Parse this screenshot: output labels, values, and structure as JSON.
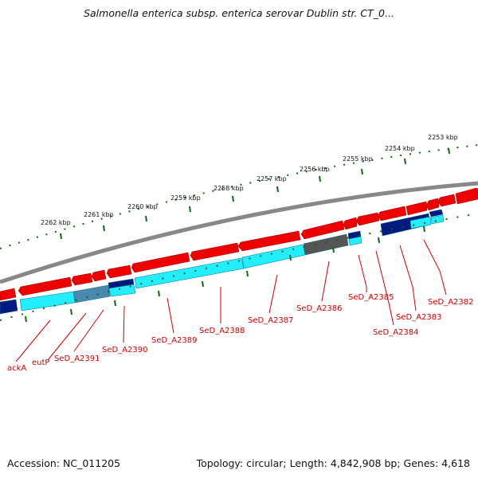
{
  "title": "Salmonella enterica subsp. enterica serovar Dublin str. CT_0...",
  "footer": {
    "accession": "Accession: NC_011205",
    "summary": "Topology: circular; Length: 4,842,908 bp; Genes: 4,618"
  },
  "scale_labels": [
    "2253 kbp",
    "2254 kbp",
    "2255 kbp",
    "2256 kbp",
    "2257 kbp",
    "2258 kbp",
    "2259 kbp",
    "2260 kbp",
    "2261 kbp",
    "2262 kbp"
  ],
  "gene_labels": [
    "SeD_A2382",
    "SeD_A2383",
    "SeD_A2384",
    "SeD_A2385",
    "SeD_A2386",
    "SeD_A2387",
    "SeD_A2388",
    "SeD_A2389",
    "SeD_A2390",
    "SeD_A2391",
    "eutP",
    "ackA"
  ],
  "colors": {
    "forward_cds": "#ee0000",
    "reverse_cds": "#22eeff",
    "forward_other": "#666666",
    "reverse_other": "#001a80",
    "backbone": "#888888",
    "tick": "#116611",
    "label": "#cc0000"
  }
}
